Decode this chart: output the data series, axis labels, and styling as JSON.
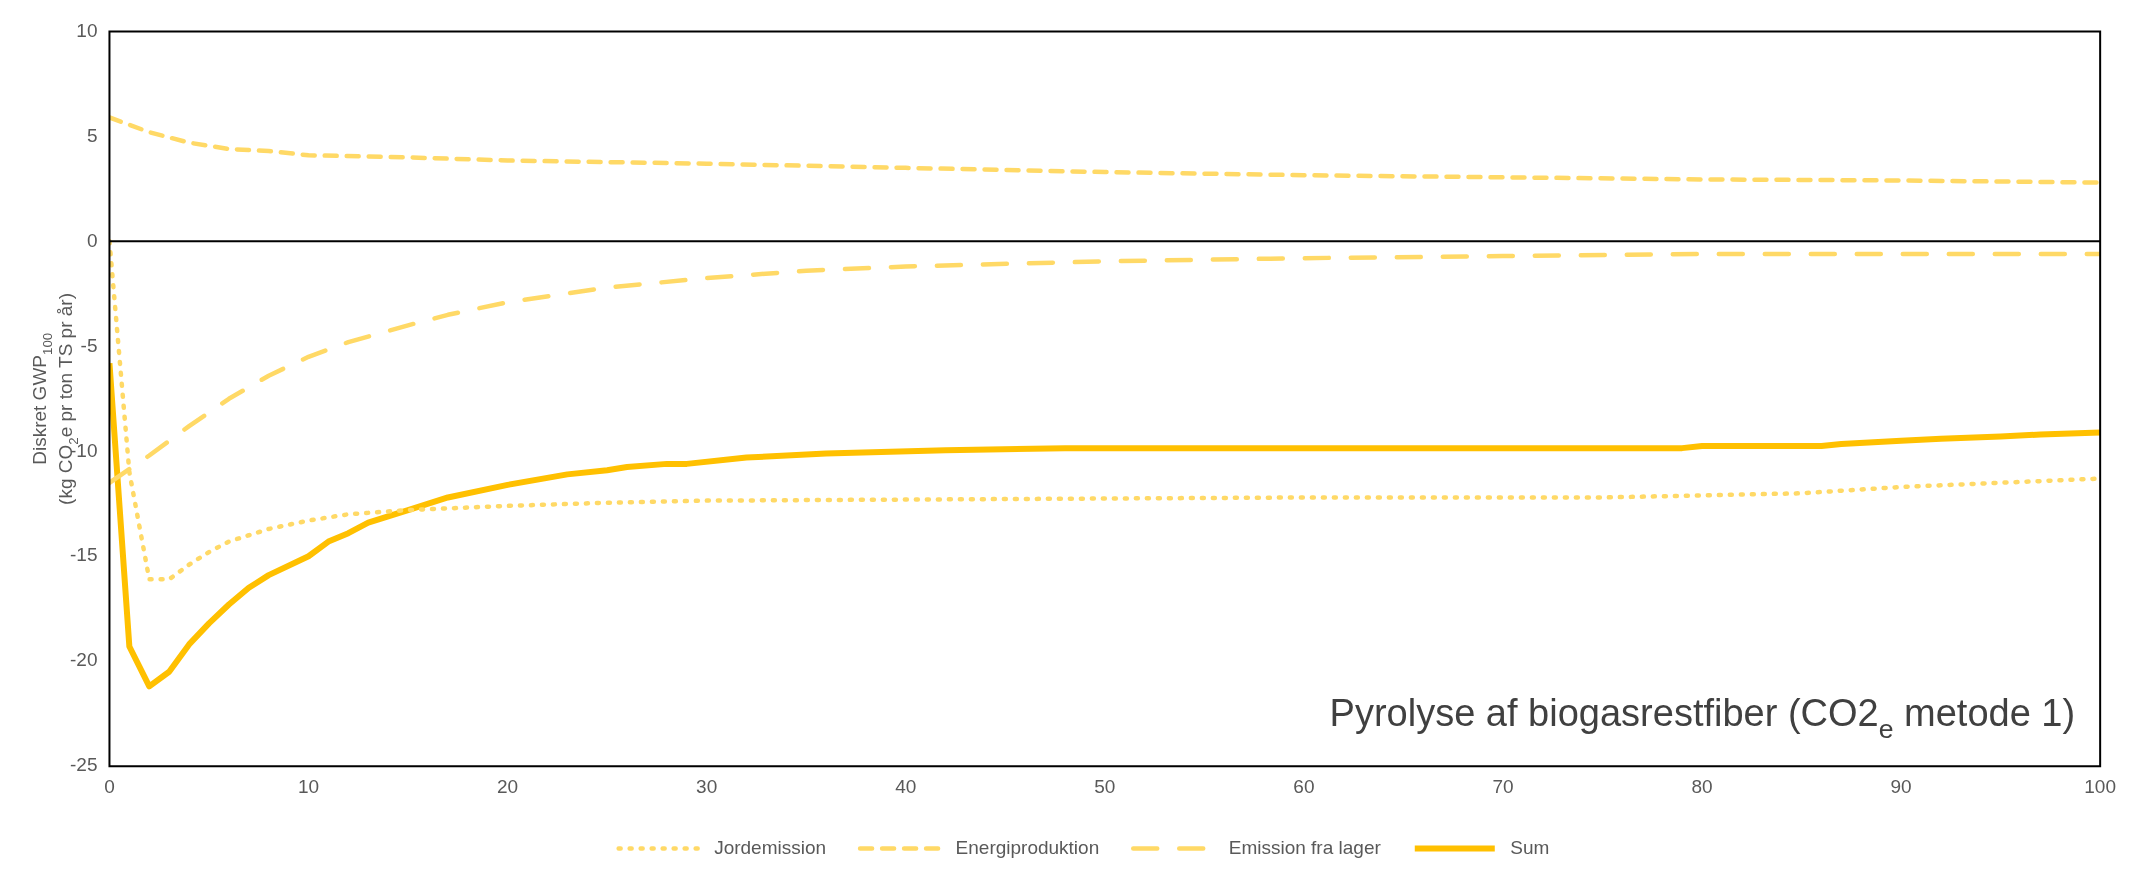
{
  "chart_data": {
    "type": "line",
    "ylabel": "Diskret GWP$_{100}$\n(kg CO$_{2}$e pr ton TS pr år)",
    "annotations": [
      "Pyrolyse af biogasrestfiber (CO2$_{e}$ metode 1)"
    ],
    "xlim": [
      0,
      100
    ],
    "xticks": [
      0,
      10,
      20,
      30,
      40,
      50,
      60,
      70,
      80,
      90,
      100
    ],
    "ylim": [
      -25,
      10
    ],
    "yticks": [
      -25,
      -20,
      -15,
      -10,
      -5,
      0,
      5,
      10
    ],
    "legend": "bottom",
    "marker": "none",
    "series": [
      {
        "name": "Jordemission",
        "color": "#ffd966",
        "line_style": "dotted",
        "x": [
          0,
          1,
          2,
          3,
          4,
          5,
          6,
          7,
          8,
          10,
          12,
          15,
          20,
          25,
          30,
          40,
          50,
          60,
          75,
          80,
          85,
          90,
          95,
          100
        ],
        "values": [
          0,
          -11,
          -16.1,
          -16.1,
          -15.4,
          -14.8,
          -14.3,
          -14,
          -13.7,
          -13.3,
          -13,
          -12.8,
          -12.6,
          -12.45,
          -12.35,
          -12.3,
          -12.25,
          -12.2,
          -12.2,
          -12.1,
          -12,
          -11.7,
          -11.5,
          -11.3
        ]
      },
      {
        "name": "Energiproduktion",
        "color": "#ffd966",
        "line_style": "dashed",
        "x": [
          0,
          2,
          4,
          6,
          8,
          10,
          15,
          20,
          30,
          40,
          50,
          60,
          70,
          80,
          90,
          95,
          100
        ],
        "values": [
          5.9,
          5.2,
          4.7,
          4.4,
          4.3,
          4.1,
          4,
          3.85,
          3.7,
          3.5,
          3.3,
          3.15,
          3.05,
          2.95,
          2.9,
          2.85,
          2.8
        ]
      },
      {
        "name": "Emission fra lager",
        "color": "#ffd966",
        "line_style": "dashed",
        "x": [
          0,
          2,
          4,
          6,
          8,
          10,
          12,
          15,
          17,
          20,
          25,
          30,
          35,
          40,
          50,
          60,
          70,
          80,
          90,
          100
        ],
        "values": [
          -11.5,
          -10.2,
          -8.8,
          -7.5,
          -6.4,
          -5.5,
          -4.8,
          -4,
          -3.5,
          -2.9,
          -2.2,
          -1.75,
          -1.4,
          -1.2,
          -0.95,
          -0.8,
          -0.7,
          -0.6,
          -0.6,
          -0.6
        ]
      },
      {
        "name": "Sum",
        "color": "#ffc000",
        "line_style": "solid",
        "x": [
          0,
          1,
          2,
          3,
          4,
          5,
          6,
          7,
          8,
          10,
          11,
          12,
          13,
          15,
          17,
          20,
          23,
          25,
          26,
          28,
          29,
          32,
          36,
          42,
          48,
          79,
          80,
          86,
          87,
          90,
          92,
          95,
          97,
          100
        ],
        "values": [
          -5.8,
          -19.3,
          -21.2,
          -20.5,
          -19.2,
          -18.2,
          -17.3,
          -16.5,
          -15.9,
          -15,
          -14.3,
          -13.9,
          -13.4,
          -12.8,
          -12.2,
          -11.6,
          -11.1,
          -10.9,
          -10.75,
          -10.6,
          -10.6,
          -10.3,
          -10.1,
          -9.95,
          -9.85,
          -9.85,
          -9.75,
          -9.75,
          -9.65,
          -9.5,
          -9.4,
          -9.3,
          -9.2,
          -9.1
        ]
      }
    ]
  }
}
